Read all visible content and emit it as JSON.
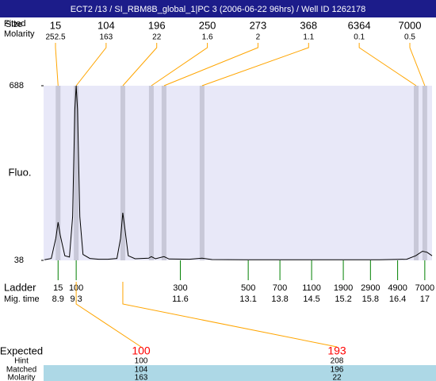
{
  "title": "ECT2 /13 / SI_RBM8B_global_1|PC 3 (2006-06-22 96hrs) / Well ID 1262178",
  "chart_data": {
    "type": "electropherogram",
    "y_label": "Fluo.",
    "fitted_label": "Fitted",
    "size_label": "Size",
    "molarity_label": "Molarity",
    "peaks": {
      "sizes": [
        15,
        104,
        196,
        250,
        273,
        368,
        6364,
        7000
      ],
      "molarity": [
        252.5,
        163,
        22,
        1.6,
        2,
        1.1,
        0.1,
        0.5
      ],
      "times": [
        8.9,
        9.3,
        10.33,
        10.96,
        11.24,
        12.08,
        16.81,
        17.0
      ]
    },
    "x": [
      8.6,
      8.75,
      8.85,
      8.9,
      8.95,
      9.05,
      9.15,
      9.22,
      9.27,
      9.3,
      9.33,
      9.38,
      9.45,
      9.6,
      9.8,
      10.0,
      10.2,
      10.28,
      10.33,
      10.38,
      10.45,
      10.6,
      10.9,
      10.96,
      11.05,
      11.24,
      11.35,
      11.8,
      12.08,
      12.3,
      13.0,
      14.0,
      15.0,
      16.0,
      16.6,
      16.8,
      16.95,
      17.05,
      17.16
    ],
    "y": [
      40,
      45,
      120,
      180,
      130,
      55,
      50,
      200,
      600,
      688,
      600,
      200,
      60,
      45,
      42,
      42,
      45,
      120,
      215,
      150,
      55,
      44,
      46,
      52,
      44,
      52,
      43,
      42,
      46,
      41,
      40,
      40,
      40,
      40,
      42,
      55,
      72,
      68,
      55
    ],
    "xlim": [
      8.58,
      17.16
    ],
    "ylim": [
      38,
      688
    ],
    "yticks": [
      38,
      688
    ],
    "line_color": "#000000",
    "peak_color": "#c8c8d8",
    "link_color": "#ffa500",
    "ladder_color": "#008000",
    "plot_background": "#e8e8f8",
    "ladder": {
      "label": "Ladder",
      "time_label": "Mig. time",
      "sizes": [
        15,
        100,
        300,
        500,
        700,
        1100,
        1900,
        2900,
        4900,
        7000
      ],
      "times": [
        8.9,
        9.3,
        11.6,
        13.1,
        13.8,
        14.5,
        15.2,
        15.8,
        16.4,
        17
      ]
    }
  },
  "table": {
    "row_labels": [
      "Expected",
      "Hint",
      "Matched",
      "Molarity"
    ],
    "expected": [
      100,
      193
    ],
    "hint": [
      100,
      208
    ],
    "matched": [
      104,
      196
    ],
    "molarity": [
      163,
      22
    ],
    "expected_color": "#ff0000",
    "highlight_color": "#add8e6"
  }
}
